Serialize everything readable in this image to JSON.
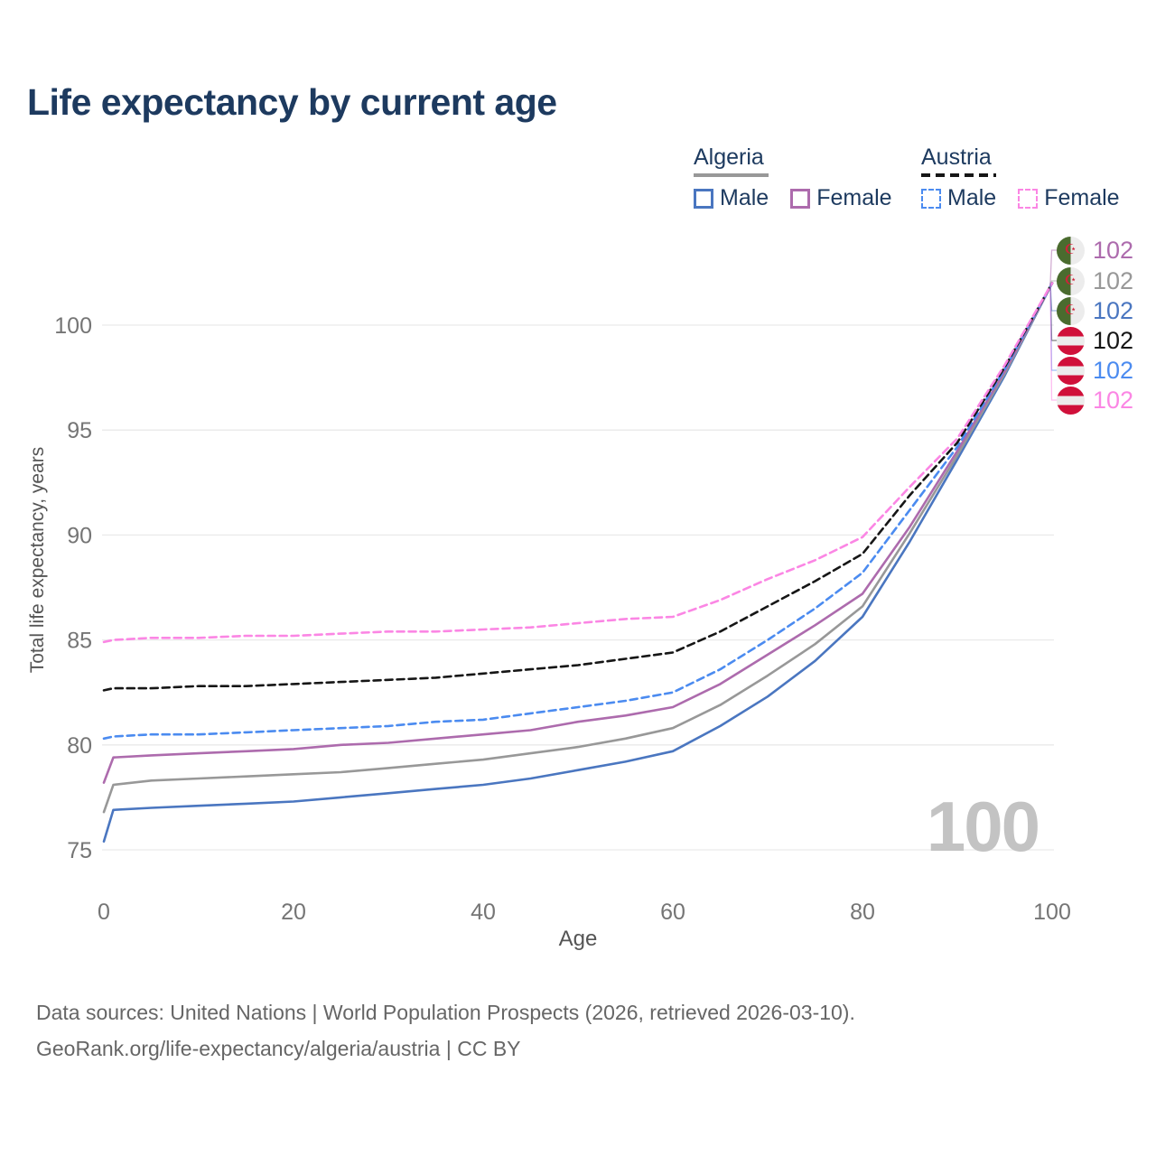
{
  "title": "Life expectancy by current age",
  "legend": {
    "groups": [
      {
        "label": "Algeria",
        "line_style": "solid",
        "color": "#989898",
        "items": [
          {
            "label": "Male",
            "color": "#4a76c0",
            "dash": false
          },
          {
            "label": "Female",
            "color": "#ad6bad",
            "dash": false
          }
        ]
      },
      {
        "label": "Austria",
        "line_style": "dashed",
        "color": "#161616",
        "items": [
          {
            "label": "Male",
            "color": "#4b8bf0",
            "dash": true
          },
          {
            "label": "Female",
            "color": "#fb86e4",
            "dash": true
          }
        ]
      }
    ]
  },
  "end_labels": [
    {
      "value": "102",
      "country": "algeria",
      "series": "Algeria Female",
      "color": "#ad6bad"
    },
    {
      "value": "102",
      "country": "algeria",
      "series": "Algeria Both sexes",
      "color": "#989898"
    },
    {
      "value": "102",
      "country": "algeria",
      "series": "Algeria Male",
      "color": "#4a76c0"
    },
    {
      "value": "102",
      "country": "austria",
      "series": "Austria Both sexes",
      "color": "#161616"
    },
    {
      "value": "102",
      "country": "austria",
      "series": "Austria Male",
      "color": "#4b8bf0"
    },
    {
      "value": "102",
      "country": "austria",
      "series": "Austria Female",
      "color": "#fb86e4"
    }
  ],
  "watermark": "100",
  "axes": {
    "x_title": "Age",
    "y_title": "Total life expectancy, years"
  },
  "footer": {
    "line1": "Data sources: United Nations | World Population Prospects (2026, retrieved 2026-03-10).",
    "line2": "GeoRank.org/life-expectancy/algeria/austria | CC BY"
  },
  "chart_data": {
    "type": "line",
    "title": "Life expectancy by current age",
    "xlabel": "Age",
    "ylabel": "Total life expectancy, years",
    "xlim": [
      0,
      100
    ],
    "ylim": [
      75,
      102.5
    ],
    "xticks": [
      0,
      20,
      40,
      60,
      80,
      100
    ],
    "yticks": [
      75,
      80,
      85,
      90,
      95,
      100
    ],
    "grid": "horizontal",
    "legend_position": "top-right",
    "x": [
      0,
      1,
      5,
      10,
      15,
      20,
      25,
      30,
      35,
      40,
      45,
      50,
      55,
      60,
      65,
      70,
      75,
      80,
      85,
      90,
      95,
      100
    ],
    "series": [
      {
        "name": "Algeria Male",
        "color": "#4a76c0",
        "dash": false,
        "values": [
          75.4,
          76.9,
          77.0,
          77.1,
          77.2,
          77.3,
          77.5,
          77.7,
          77.9,
          78.1,
          78.4,
          78.8,
          79.2,
          79.7,
          80.9,
          82.3,
          84.0,
          86.1,
          89.7,
          93.6,
          97.6,
          102
        ]
      },
      {
        "name": "Algeria Both sexes",
        "color": "#989898",
        "dash": false,
        "values": [
          76.8,
          78.1,
          78.3,
          78.4,
          78.5,
          78.6,
          78.7,
          78.9,
          79.1,
          79.3,
          79.6,
          79.9,
          80.3,
          80.8,
          81.9,
          83.3,
          84.8,
          86.6,
          90.1,
          93.8,
          97.7,
          102
        ]
      },
      {
        "name": "Algeria Female",
        "color": "#ad6bad",
        "dash": false,
        "values": [
          78.2,
          79.4,
          79.5,
          79.6,
          79.7,
          79.8,
          80.0,
          80.1,
          80.3,
          80.5,
          80.7,
          81.1,
          81.4,
          81.8,
          82.9,
          84.3,
          85.7,
          87.2,
          90.4,
          94.0,
          97.8,
          102
        ]
      },
      {
        "name": "Austria Male",
        "color": "#4b8bf0",
        "dash": true,
        "values": [
          80.3,
          80.4,
          80.5,
          80.5,
          80.6,
          80.7,
          80.8,
          80.9,
          81.1,
          81.2,
          81.5,
          81.8,
          82.1,
          82.5,
          83.6,
          85.0,
          86.5,
          88.2,
          91.2,
          94.2,
          97.9,
          102
        ]
      },
      {
        "name": "Austria Both sexes",
        "color": "#161616",
        "dash": true,
        "values": [
          82.6,
          82.7,
          82.7,
          82.8,
          82.8,
          82.9,
          83.0,
          83.1,
          83.2,
          83.4,
          83.6,
          83.8,
          84.1,
          84.4,
          85.4,
          86.6,
          87.8,
          89.1,
          91.9,
          94.4,
          98.0,
          102
        ]
      },
      {
        "name": "Austria Female",
        "color": "#fb86e4",
        "dash": true,
        "values": [
          84.9,
          85.0,
          85.1,
          85.1,
          85.2,
          85.2,
          85.3,
          85.4,
          85.4,
          85.5,
          85.6,
          85.8,
          86.0,
          86.1,
          86.9,
          87.9,
          88.8,
          89.9,
          92.3,
          94.6,
          98.1,
          102
        ]
      }
    ],
    "end_value": 102
  },
  "theme": {
    "title_color": "#1d3a5f",
    "grid_color": "#eaeaea",
    "tick_color": "#757575",
    "axis_title_color": "#555555",
    "watermark_color": "#c3c3c3",
    "footer_color": "#666666"
  }
}
